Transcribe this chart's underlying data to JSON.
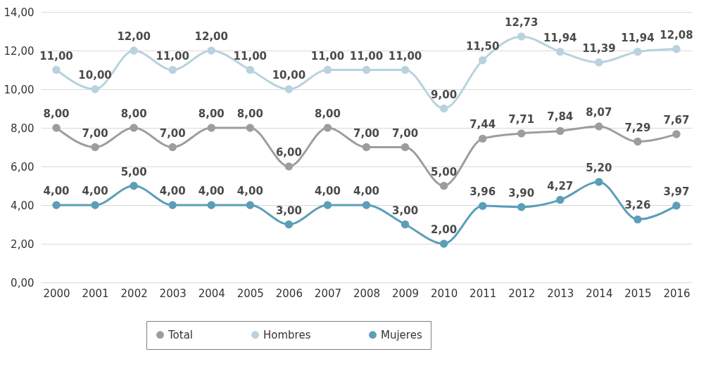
{
  "chart_data": {
    "type": "line",
    "categories": [
      "2000",
      "2001",
      "2002",
      "2003",
      "2004",
      "2005",
      "2006",
      "2007",
      "2008",
      "2009",
      "2010",
      "2011",
      "2012",
      "2013",
      "2014",
      "2015",
      "2016"
    ],
    "series": [
      {
        "name": "Total",
        "color": "#9d9d9d",
        "values": [
          8,
          7,
          8,
          7,
          8,
          8,
          6,
          8,
          7,
          7,
          5,
          7.44,
          7.71,
          7.84,
          8.07,
          7.29,
          7.67
        ],
        "value_labels": [
          "8,00",
          "7,00",
          "8,00",
          "7,00",
          "8,00",
          "8,00",
          "6,00",
          "8,00",
          "7,00",
          "7,00",
          "5,00",
          "7,44",
          "7,71",
          "7,84",
          "8,07",
          "7,29",
          "7,67"
        ]
      },
      {
        "name": "Hombres",
        "color": "#b8d2de",
        "values": [
          11,
          10,
          12,
          11,
          12,
          11,
          10,
          11,
          11,
          11,
          9,
          11.5,
          12.73,
          11.94,
          11.39,
          11.94,
          12.08
        ],
        "value_labels": [
          "11,00",
          "10,00",
          "12,00",
          "11,00",
          "12,00",
          "11,00",
          "10,00",
          "11,00",
          "11,00",
          "11,00",
          "9,00",
          "11,50",
          "12,73",
          "11,94",
          "11,39",
          "11,94",
          "12,08"
        ]
      },
      {
        "name": "Mujeres",
        "color": "#5a9eb8",
        "values": [
          4,
          4,
          5,
          4,
          4,
          4,
          3,
          4,
          4,
          3,
          2,
          3.96,
          3.9,
          4.27,
          5.2,
          3.26,
          3.97
        ],
        "value_labels": [
          "4,00",
          "4,00",
          "5,00",
          "4,00",
          "4,00",
          "4,00",
          "3,00",
          "4,00",
          "4,00",
          "3,00",
          "2,00",
          "3,96",
          "3,90",
          "4,27",
          "5,20",
          "3,26",
          "3,97"
        ]
      }
    ],
    "ylim": [
      0,
      14
    ],
    "yticks": [
      {
        "value": 0,
        "label": "0,00"
      },
      {
        "value": 2,
        "label": "2,00"
      },
      {
        "value": 4,
        "label": "4,00"
      },
      {
        "value": 6,
        "label": "6,00"
      },
      {
        "value": 8,
        "label": "8,00"
      },
      {
        "value": 10,
        "label": "10,00"
      },
      {
        "value": 12,
        "label": "12,00"
      },
      {
        "value": 14,
        "label": "14,00"
      }
    ],
    "grid": "y",
    "legend": "bottom",
    "marker": "circle",
    "line_style": "solid"
  }
}
